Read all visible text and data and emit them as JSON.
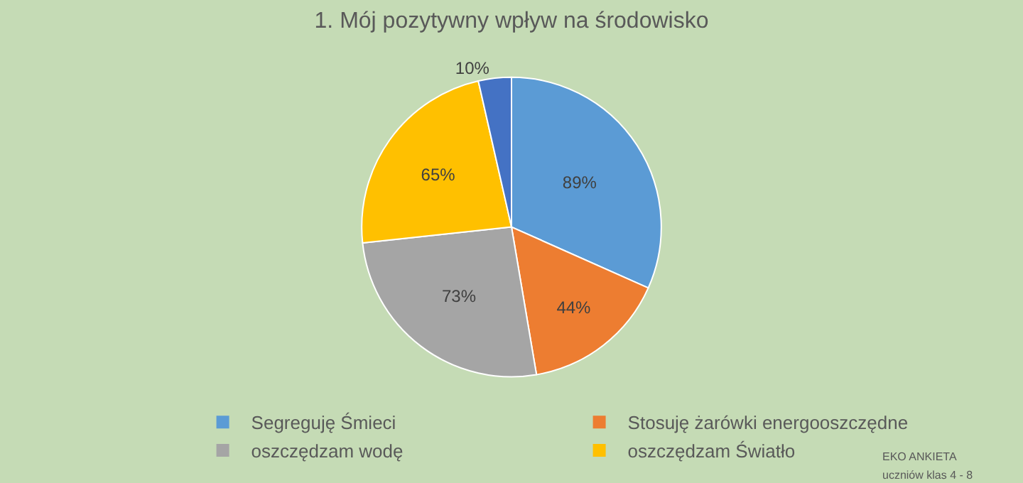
{
  "chart_data": {
    "type": "pie",
    "title": "1. Mój pozytywny wpływ na środowisko",
    "categories": [
      "Segreguję Śmieci",
      "Stosuję żarówki energooszczędne",
      "oszczędzam wodę",
      "oszczędzam Światło",
      null
    ],
    "values": [
      89,
      44,
      73,
      65,
      10
    ],
    "value_labels": [
      "89%",
      "44%",
      "73%",
      "65%",
      "10%"
    ],
    "colors": [
      "#5b9bd5",
      "#ed7d31",
      "#a5a5a5",
      "#ffc000",
      "#4472c4"
    ],
    "legend": "bottom",
    "annotations": [
      "EKO ANKIETA",
      "uczniów klas 4 - 8"
    ]
  }
}
